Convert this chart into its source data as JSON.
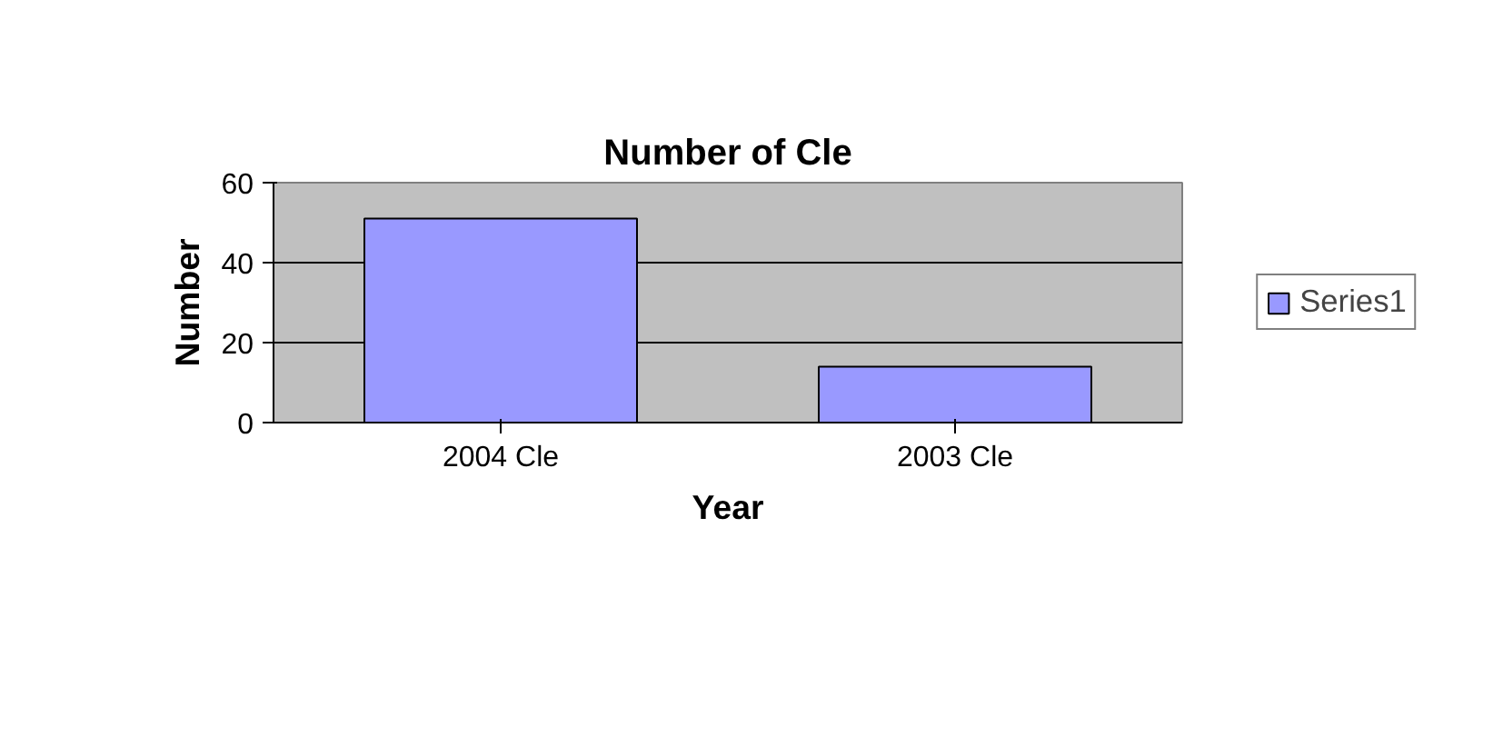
{
  "chart_data": {
    "type": "bar",
    "title": "Number of Cle",
    "xlabel": "Year",
    "ylabel": "Number",
    "categories": [
      "2004 Cle",
      "2003 Cle"
    ],
    "series": [
      {
        "name": "Series1",
        "color": "#9999ff",
        "values": [
          51,
          14
        ]
      }
    ],
    "ylim": [
      0,
      60
    ],
    "yticks": [
      0,
      20,
      40,
      60
    ],
    "grid": "y",
    "legend": "right"
  }
}
